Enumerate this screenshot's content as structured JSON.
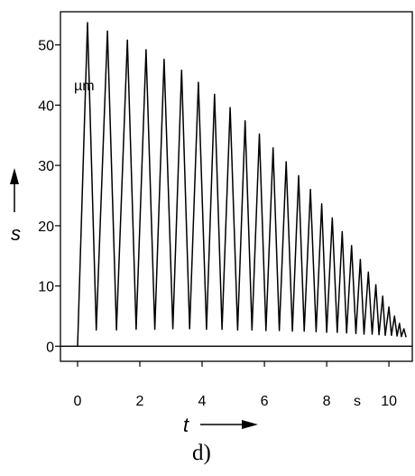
{
  "chart_data": {
    "type": "line",
    "title": "",
    "xlabel": "t",
    "ylabel": "s",
    "x_unit": "s",
    "y_unit": "µm",
    "caption": "d)",
    "xlim": [
      -0.55,
      10.75
    ],
    "ylim": [
      -2.5,
      55.5
    ],
    "xticks": [
      0,
      2,
      4,
      6,
      8,
      10
    ],
    "yticks": [
      0,
      10,
      20,
      30,
      40,
      50
    ],
    "grid": false,
    "series": [
      {
        "color": "#000000",
        "peaks": [
          {
            "x": 0.32,
            "y": 53.7
          },
          {
            "x": 0.96,
            "y": 52.3
          },
          {
            "x": 1.6,
            "y": 50.8
          },
          {
            "x": 2.2,
            "y": 49.2
          },
          {
            "x": 2.78,
            "y": 47.6
          },
          {
            "x": 3.34,
            "y": 45.8
          },
          {
            "x": 3.88,
            "y": 43.8
          },
          {
            "x": 4.4,
            "y": 41.8
          },
          {
            "x": 4.9,
            "y": 39.6
          },
          {
            "x": 5.38,
            "y": 37.4
          },
          {
            "x": 5.84,
            "y": 35.2
          },
          {
            "x": 6.28,
            "y": 32.9
          },
          {
            "x": 6.7,
            "y": 30.6
          },
          {
            "x": 7.1,
            "y": 28.3
          },
          {
            "x": 7.48,
            "y": 26.0
          },
          {
            "x": 7.84,
            "y": 23.6
          },
          {
            "x": 8.18,
            "y": 21.3
          },
          {
            "x": 8.5,
            "y": 19.0
          },
          {
            "x": 8.8,
            "y": 16.7
          },
          {
            "x": 9.08,
            "y": 14.4
          },
          {
            "x": 9.34,
            "y": 12.3
          },
          {
            "x": 9.58,
            "y": 10.2
          },
          {
            "x": 9.8,
            "y": 8.3
          },
          {
            "x": 10.0,
            "y": 6.5
          },
          {
            "x": 10.18,
            "y": 5.0
          },
          {
            "x": 10.34,
            "y": 3.8
          },
          {
            "x": 10.48,
            "y": 2.9
          }
        ],
        "troughs": [
          {
            "x": 0.6,
            "y": 2.7
          },
          {
            "x": 1.25,
            "y": 2.7
          },
          {
            "x": 1.88,
            "y": 2.8
          },
          {
            "x": 2.48,
            "y": 2.8
          },
          {
            "x": 3.06,
            "y": 2.9
          },
          {
            "x": 3.6,
            "y": 2.9
          },
          {
            "x": 4.14,
            "y": 2.8
          },
          {
            "x": 4.64,
            "y": 2.8
          },
          {
            "x": 5.14,
            "y": 2.7
          },
          {
            "x": 5.6,
            "y": 2.7
          },
          {
            "x": 6.05,
            "y": 2.6
          },
          {
            "x": 6.48,
            "y": 2.6
          },
          {
            "x": 6.9,
            "y": 2.5
          },
          {
            "x": 7.28,
            "y": 2.5
          },
          {
            "x": 7.66,
            "y": 2.4
          },
          {
            "x": 8.0,
            "y": 2.3
          },
          {
            "x": 8.34,
            "y": 2.3
          },
          {
            "x": 8.64,
            "y": 2.2
          },
          {
            "x": 8.94,
            "y": 2.1
          },
          {
            "x": 9.2,
            "y": 2.0
          },
          {
            "x": 9.46,
            "y": 2.0
          },
          {
            "x": 9.68,
            "y": 1.9
          },
          {
            "x": 9.88,
            "y": 1.8
          },
          {
            "x": 10.08,
            "y": 1.8
          },
          {
            "x": 10.26,
            "y": 1.7
          },
          {
            "x": 10.4,
            "y": 1.6
          },
          {
            "x": 10.55,
            "y": 1.5
          }
        ]
      }
    ]
  }
}
